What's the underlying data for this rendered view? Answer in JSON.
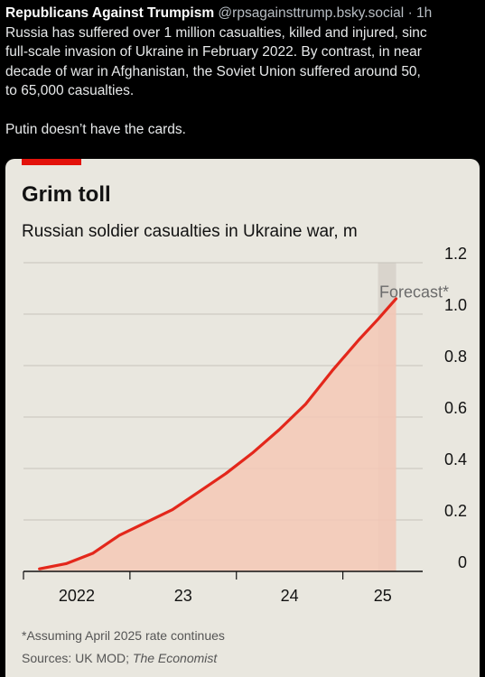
{
  "post": {
    "author": "Republicans Against Trumpism",
    "handle": "@rpsagainsttrump.bsky.social",
    "time": "· 1h",
    "lines": [
      "Russia has suffered over 1 million casualties, killed and injured, sinc",
      "full-scale invasion of Ukraine in February 2022. By contrast, in near",
      "decade of war in Afghanistan, the Soviet Union suffered around 50,",
      "to 65,000 casualties."
    ],
    "closing": "Putin doesn’t have the cards."
  },
  "chart_data": {
    "type": "area",
    "title": "Grim toll",
    "subtitle": "Russian soldier casualties in Ukraine war, m",
    "x_tick_labels": [
      "2022",
      "23",
      "24",
      "25"
    ],
    "y_ticks": [
      0,
      0.2,
      0.4,
      0.6,
      0.8,
      1.0,
      1.2
    ],
    "y_tick_labels": [
      "0",
      "0.2",
      "0.4",
      "0.6",
      "0.8",
      "1.0",
      "1.2"
    ],
    "ylim": [
      0,
      1.2
    ],
    "xlim": [
      2022.0,
      2025.75
    ],
    "annotation": "Forecast*",
    "forecast_start": 2025.33,
    "x": [
      2022.15,
      2022.4,
      2022.65,
      2022.9,
      2023.15,
      2023.4,
      2023.65,
      2023.9,
      2024.15,
      2024.4,
      2024.65,
      2024.9,
      2025.15,
      2025.33,
      2025.5
    ],
    "y": [
      0.01,
      0.03,
      0.07,
      0.14,
      0.19,
      0.24,
      0.31,
      0.38,
      0.46,
      0.55,
      0.65,
      0.78,
      0.9,
      0.98,
      1.06
    ],
    "footnote": "*Assuming April 2025 rate continues",
    "sources_prefix": "Sources: UK MOD; ",
    "sources_publication": "The Economist",
    "colors": {
      "line": "#e3271b",
      "fill": "#f4c8b6",
      "forecast_band": "#d9d4cc",
      "grid": "#c6c3bb",
      "axis": "#121212",
      "background": "#e9e7df",
      "accent_tag": "#e3120b"
    }
  }
}
